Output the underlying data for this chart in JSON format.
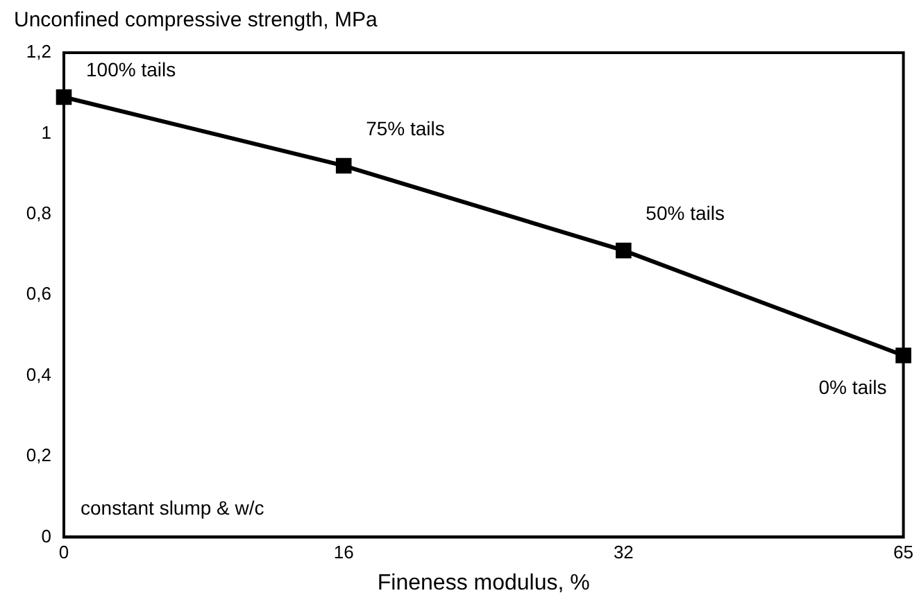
{
  "chart_data": {
    "type": "line",
    "ylabel": "Unconfined compressive strength, MPa",
    "xlabel": "Fineness modulus, %",
    "categories": [
      "0",
      "16",
      "32",
      "65"
    ],
    "series": [
      {
        "color": "#000000",
        "values": [
          1.09,
          0.92,
          0.71,
          0.45
        ]
      }
    ],
    "ylim": [
      0,
      1.2
    ],
    "yticks": [
      0,
      {
        "value": 0.2,
        "label": "0,2"
      },
      {
        "value": 0.4,
        "label": "0,4"
      },
      {
        "value": 0.6,
        "label": "0,6"
      },
      {
        "value": 0.8,
        "label": "0,8"
      },
      1,
      {
        "value": 1.2,
        "label": "1,2"
      }
    ],
    "annotations": [
      {
        "text": "100% tails",
        "x": "0",
        "y": 1.09
      },
      {
        "text": "75% tails",
        "x": "16",
        "y": 0.92
      },
      {
        "text": "50% tails",
        "x": "32",
        "y": 0.71
      },
      {
        "text": "0% tails",
        "x": "65",
        "y": 0.45
      },
      "constant slump & w/c"
    ],
    "grid": false,
    "legend": false,
    "marker": "square",
    "line_style": "solid"
  }
}
